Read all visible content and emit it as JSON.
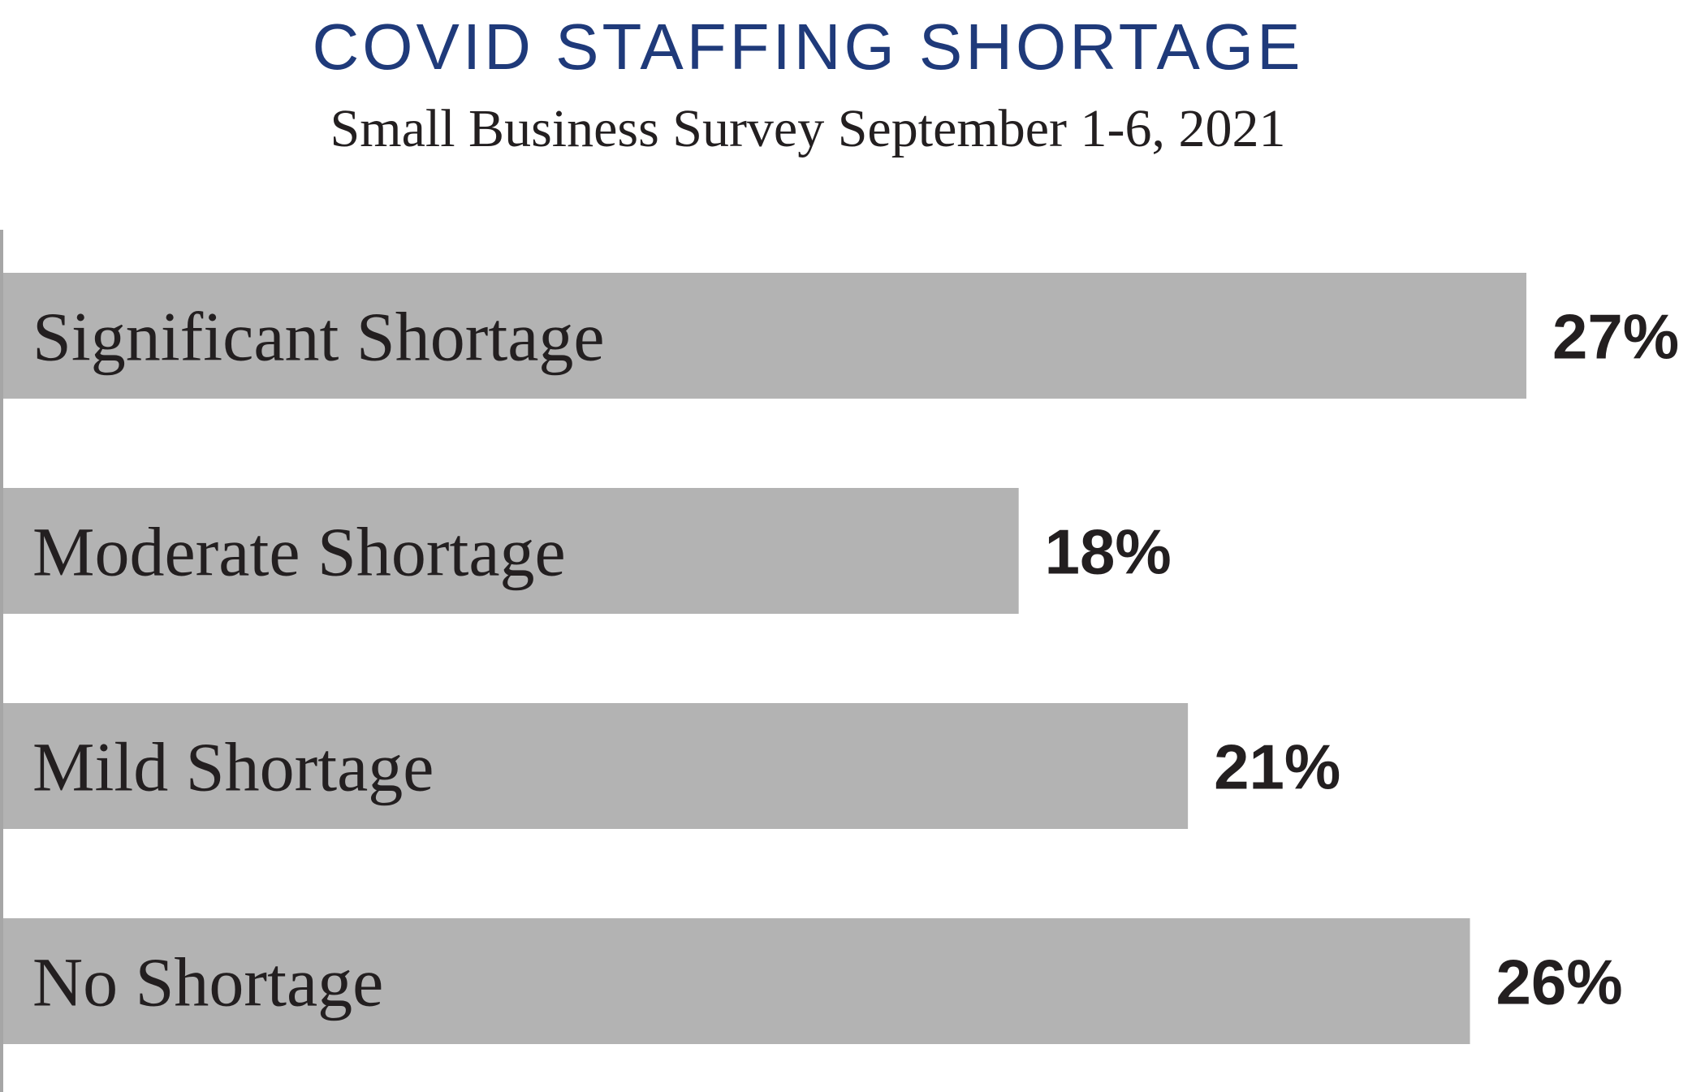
{
  "chart_data": {
    "type": "bar",
    "orientation": "horizontal",
    "title": "COVID STAFFING SHORTAGE",
    "subtitle": "Small Business Survey September 1-6, 2021",
    "categories": [
      "Significant Shortage",
      "Moderate Shortage",
      "Mild Shortage",
      "No Shortage"
    ],
    "values": [
      27,
      18,
      21,
      26
    ],
    "value_labels": [
      "27%",
      "18%",
      "21%",
      "26%"
    ],
    "xlim": [
      0,
      30
    ],
    "grid": false,
    "legend": "none"
  },
  "colors": {
    "title": "#1f3a7a",
    "bar": "#b3b3b3",
    "axis": "#a6a6a6",
    "text": "#231f20"
  }
}
